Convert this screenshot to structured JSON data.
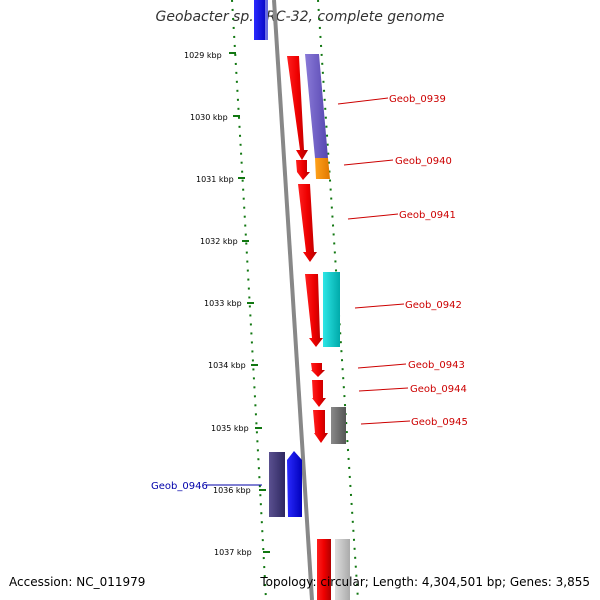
{
  "title": "Geobacter sp. FRC-32, complete genome",
  "accession": "Accession: NC_011979",
  "topology": "Topology: circular; Length: 4,304,501 bp; Genes: 3,855",
  "colors": {
    "forward_label": "#cc0000",
    "reverse_label": "#0000aa",
    "scale_ticks": "#117711",
    "backbone": "#888888"
  },
  "scale_ticks": [
    "1029 kbp",
    "1030 kbp",
    "1031 kbp",
    "1032 kbp",
    "1033 kbp",
    "1034 kbp",
    "1035 kbp",
    "1036 kbp",
    "1037 kbp"
  ],
  "genes": [
    {
      "label": "Geob_0939",
      "strand": "forward",
      "color": "red"
    },
    {
      "label": "Geob_0940",
      "strand": "forward",
      "color": "red"
    },
    {
      "label": "Geob_0941",
      "strand": "forward",
      "color": "red"
    },
    {
      "label": "Geob_0942",
      "strand": "forward",
      "color": "red"
    },
    {
      "label": "Geob_0943",
      "strand": "forward",
      "color": "red"
    },
    {
      "label": "Geob_0944",
      "strand": "forward",
      "color": "red"
    },
    {
      "label": "Geob_0945",
      "strand": "forward",
      "color": "red"
    },
    {
      "label": "Geob_0946",
      "strand": "reverse",
      "color": "blue"
    }
  ]
}
